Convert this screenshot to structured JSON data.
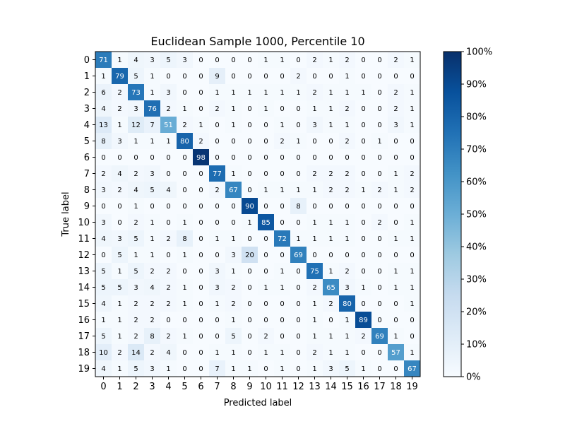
{
  "chart_data": {
    "type": "heatmap",
    "title": "Euclidean Sample 1000, Percentile 10",
    "xlabel": "Predicted label",
    "ylabel": "True label",
    "x_categories": [
      "0",
      "1",
      "2",
      "3",
      "4",
      "5",
      "6",
      "7",
      "8",
      "9",
      "10",
      "11",
      "12",
      "13",
      "14",
      "15",
      "16",
      "17",
      "18",
      "19"
    ],
    "y_categories": [
      "0",
      "1",
      "2",
      "3",
      "4",
      "5",
      "6",
      "7",
      "8",
      "9",
      "10",
      "11",
      "12",
      "13",
      "14",
      "15",
      "16",
      "17",
      "18",
      "19"
    ],
    "values": [
      [
        71,
        1,
        4,
        3,
        5,
        3,
        0,
        0,
        0,
        0,
        1,
        1,
        0,
        2,
        1,
        2,
        0,
        0,
        2,
        1
      ],
      [
        1,
        79,
        5,
        1,
        0,
        0,
        0,
        9,
        0,
        0,
        0,
        0,
        2,
        0,
        0,
        1,
        0,
        0,
        0,
        0
      ],
      [
        6,
        2,
        73,
        1,
        3,
        0,
        0,
        1,
        1,
        1,
        1,
        1,
        1,
        2,
        1,
        1,
        1,
        0,
        2,
        1
      ],
      [
        4,
        2,
        3,
        76,
        2,
        1,
        0,
        2,
        1,
        0,
        1,
        0,
        0,
        1,
        1,
        2,
        0,
        0,
        2,
        1
      ],
      [
        13,
        1,
        12,
        7,
        51,
        2,
        1,
        0,
        1,
        0,
        0,
        1,
        0,
        3,
        1,
        1,
        0,
        0,
        3,
        1
      ],
      [
        8,
        3,
        1,
        1,
        1,
        80,
        2,
        0,
        0,
        0,
        0,
        2,
        1,
        0,
        0,
        2,
        0,
        1,
        0,
        0
      ],
      [
        0,
        0,
        0,
        0,
        0,
        0,
        98,
        0,
        0,
        0,
        0,
        0,
        0,
        0,
        0,
        0,
        0,
        0,
        0,
        0
      ],
      [
        2,
        4,
        2,
        3,
        0,
        0,
        0,
        77,
        1,
        0,
        0,
        0,
        0,
        2,
        2,
        2,
        0,
        0,
        1,
        2
      ],
      [
        3,
        2,
        4,
        5,
        4,
        0,
        0,
        2,
        67,
        0,
        1,
        1,
        1,
        1,
        2,
        2,
        1,
        2,
        1,
        2
      ],
      [
        0,
        0,
        1,
        0,
        0,
        0,
        0,
        0,
        0,
        90,
        0,
        0,
        8,
        0,
        0,
        0,
        0,
        0,
        0,
        0
      ],
      [
        3,
        0,
        2,
        1,
        0,
        1,
        0,
        0,
        0,
        1,
        85,
        0,
        0,
        1,
        1,
        1,
        0,
        2,
        0,
        1
      ],
      [
        4,
        3,
        5,
        1,
        2,
        8,
        0,
        1,
        1,
        0,
        0,
        72,
        1,
        1,
        1,
        1,
        0,
        0,
        1,
        1
      ],
      [
        0,
        5,
        1,
        1,
        0,
        1,
        0,
        0,
        3,
        20,
        0,
        0,
        69,
        0,
        0,
        0,
        0,
        0,
        0,
        0
      ],
      [
        5,
        1,
        5,
        2,
        2,
        0,
        0,
        3,
        1,
        0,
        0,
        1,
        0,
        75,
        1,
        2,
        0,
        0,
        1,
        1
      ],
      [
        5,
        5,
        3,
        4,
        2,
        1,
        0,
        3,
        2,
        0,
        1,
        1,
        0,
        2,
        65,
        3,
        1,
        0,
        1,
        1
      ],
      [
        4,
        1,
        2,
        2,
        2,
        1,
        0,
        1,
        2,
        0,
        0,
        0,
        0,
        1,
        2,
        80,
        0,
        0,
        0,
        1
      ],
      [
        1,
        1,
        2,
        2,
        0,
        0,
        0,
        0,
        1,
        0,
        0,
        0,
        0,
        1,
        0,
        1,
        89,
        0,
        0,
        0
      ],
      [
        5,
        1,
        2,
        8,
        2,
        1,
        0,
        0,
        5,
        0,
        2,
        0,
        0,
        1,
        1,
        1,
        2,
        69,
        1,
        0
      ],
      [
        10,
        2,
        14,
        2,
        4,
        0,
        0,
        1,
        1,
        0,
        1,
        1,
        0,
        2,
        1,
        1,
        0,
        0,
        57,
        1
      ],
      [
        4,
        1,
        5,
        3,
        1,
        0,
        0,
        7,
        1,
        1,
        0,
        1,
        0,
        1,
        3,
        5,
        1,
        0,
        0,
        67
      ]
    ],
    "colorbar": {
      "ticks": [
        "0%",
        "10%",
        "20%",
        "30%",
        "40%",
        "50%",
        "60%",
        "70%",
        "80%",
        "90%",
        "100%"
      ],
      "range": [
        0,
        100
      ]
    },
    "colormap": "Blues"
  }
}
